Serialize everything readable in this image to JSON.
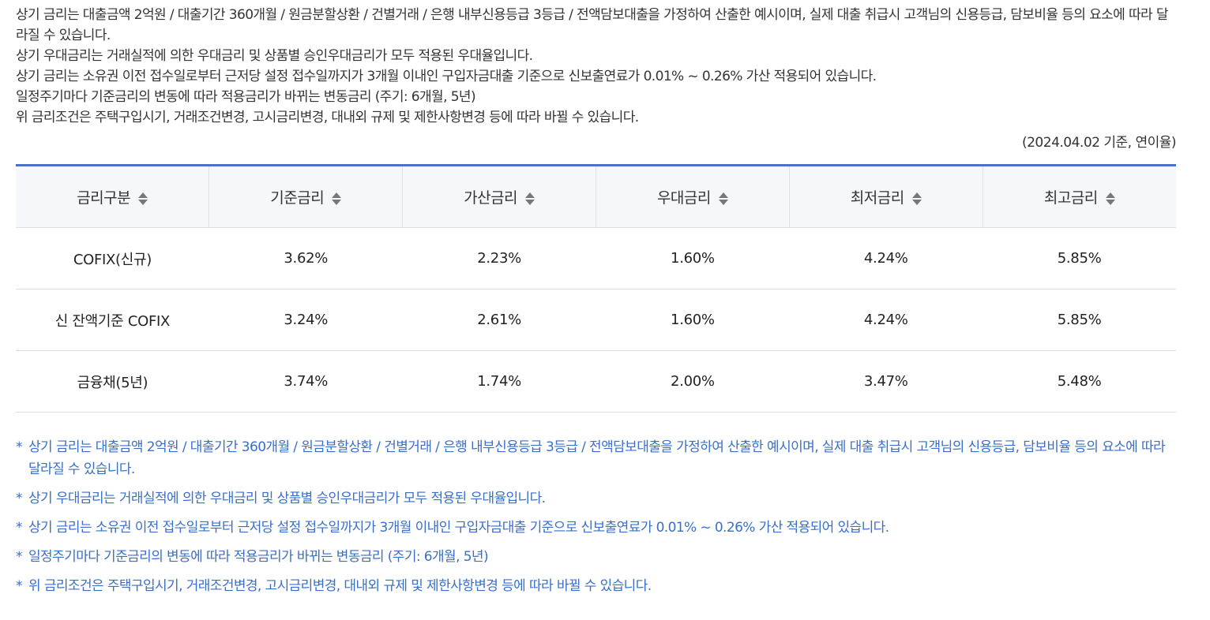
{
  "intro": {
    "lines": [
      "상기 금리는 대출금액 2억원 / 대출기간 360개월 / 원금분할상환 / 건별거래 / 은행 내부신용등급 3등급 / 전액담보대출을 가정하여 산출한 예시이며, 실제 대출 취급시 고객님의 신용등급, 담보비율 등의 요소에 따라 달라질 수 있습니다.",
      "상기 우대금리는 거래실적에 의한 우대금리 및 상품별 승인우대금리가 모두 적용된 우대율입니다.",
      "상기 금리는 소유권 이전 접수일로부터 근저당 설정 접수일까지가 3개월 이내인 구입자금대출 기준으로 신보출연료가 0.01% ~ 0.26% 가산 적용되어 있습니다.",
      "일정주기마다 기준금리의 변동에 따라 적용금리가 바뀌는 변동금리 (주기: 6개월, 5년)",
      "위 금리조건은 주택구입시기, 거래조건변경, 고시금리변경, 대내외 규제 및 제한사항변경 등에 따라 바뀔 수 있습니다."
    ]
  },
  "basis": "(2024.04.02 기준, 연이율)",
  "table": {
    "headers": [
      "금리구분",
      "기준금리",
      "가산금리",
      "우대금리",
      "최저금리",
      "최고금리"
    ],
    "rows": [
      [
        "COFIX(신규)",
        "3.62%",
        "2.23%",
        "1.60%",
        "4.24%",
        "5.85%"
      ],
      [
        "신 잔액기준 COFIX",
        "3.24%",
        "2.61%",
        "1.60%",
        "4.24%",
        "5.85%"
      ],
      [
        "금융채(5년)",
        "3.74%",
        "1.74%",
        "2.00%",
        "3.47%",
        "5.48%"
      ]
    ]
  },
  "notes": {
    "marker": "*",
    "items": [
      "상기 금리는 대출금액 2억원 / 대출기간 360개월 / 원금분할상환 / 건별거래 / 은행 내부신용등급 3등급 / 전액담보대출을 가정하여 산출한 예시이며, 실제 대출 취급시 고객님의 신용등급, 담보비율 등의 요소에 따라 달라질 수 있습니다.",
      "상기 우대금리는 거래실적에 의한 우대금리 및 상품별 승인우대금리가 모두 적용된 우대율입니다.",
      "상기 금리는 소유권 이전 접수일로부터 근저당 설정 접수일까지가 3개월 이내인 구입자금대출 기준으로 신보출연료가 0.01% ~ 0.26% 가산 적용되어 있습니다.",
      "일정주기마다 기준금리의 변동에 따라 적용금리가 바뀌는 변동금리 (주기: 6개월, 5년)",
      "위 금리조건은 주택구입시기, 거래조건변경, 고시금리변경, 대내외 규제 및 제한사항변경 등에 따라 바뀔 수 있습니다."
    ]
  },
  "colors": {
    "accent": "#4a72c4",
    "note_text": "#3a6fc9",
    "header_bg": "#f5f7fb"
  },
  "icons": {
    "sort": "sort-updown-icon"
  }
}
